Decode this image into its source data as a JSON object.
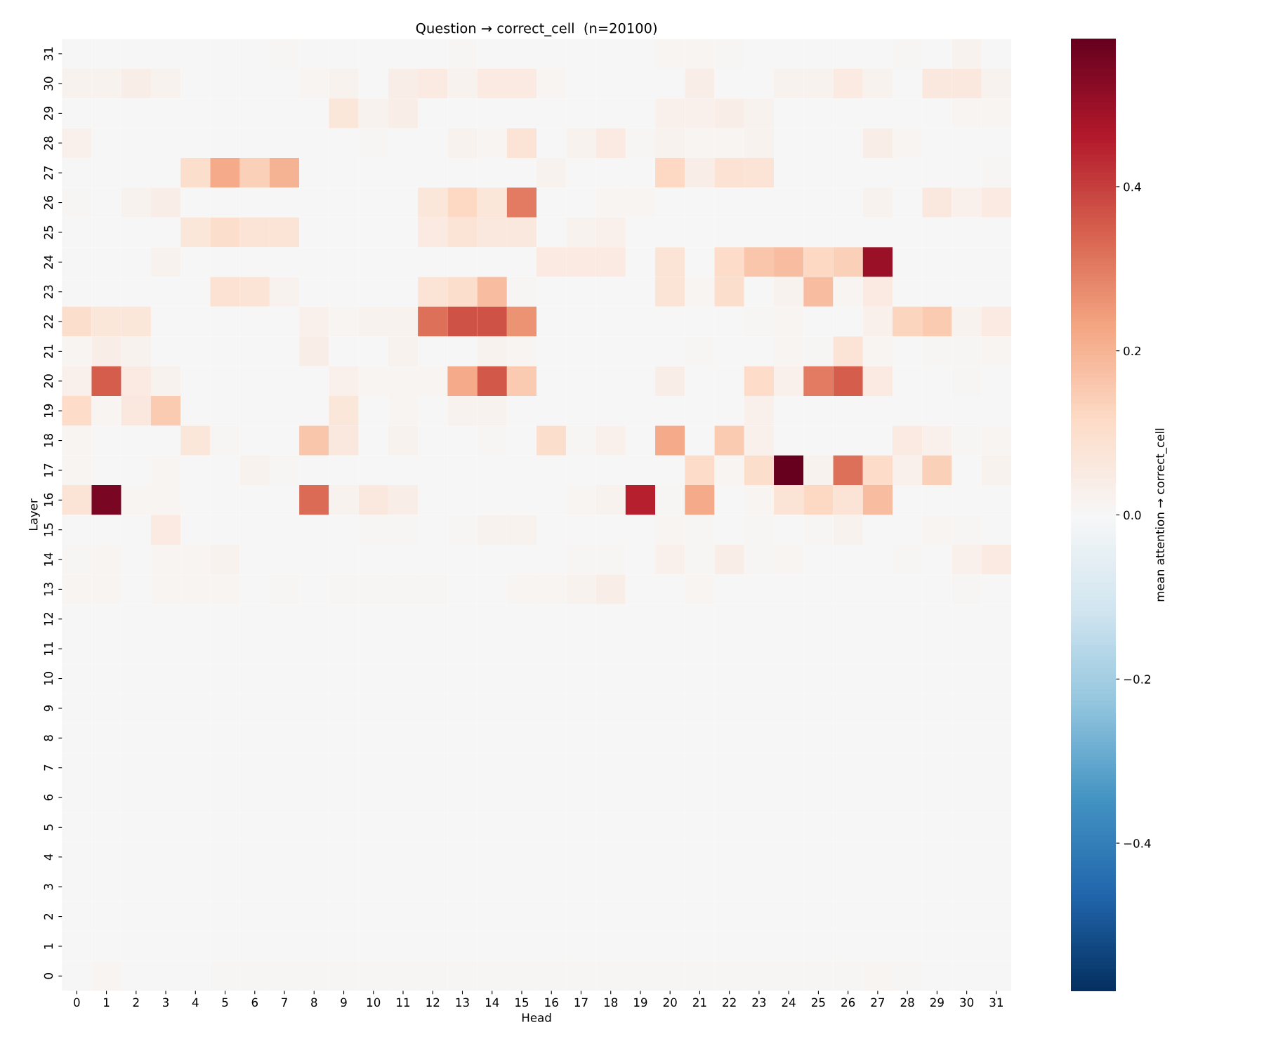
{
  "chart_data": {
    "type": "heatmap",
    "title": "Question → correct_cell  (n=20100)",
    "xlabel": "Head",
    "ylabel": "Layer",
    "clabel": "mean attention → correct_cell",
    "categories": [
      "0",
      "1",
      "2",
      "3",
      "4",
      "5",
      "6",
      "7",
      "8",
      "9",
      "10",
      "11",
      "12",
      "13",
      "14",
      "15",
      "16",
      "17",
      "18",
      "19",
      "20",
      "21",
      "22",
      "23",
      "24",
      "25",
      "26",
      "27",
      "28",
      "29",
      "30",
      "31"
    ],
    "y_categories": [
      "31",
      "30",
      "29",
      "28",
      "27",
      "26",
      "25",
      "24",
      "23",
      "22",
      "21",
      "20",
      "19",
      "18",
      "17",
      "16",
      "15",
      "14",
      "13",
      "12",
      "11",
      "10",
      "9",
      "8",
      "7",
      "6",
      "5",
      "4",
      "3",
      "2",
      "1",
      "0"
    ],
    "clim": [
      -0.58,
      0.58
    ],
    "cticks": [
      {
        "value": -0.4,
        "label": "−0.4"
      },
      {
        "value": -0.2,
        "label": "−0.2"
      },
      {
        "value": 0,
        "label": "0.0"
      },
      {
        "value": 0.2,
        "label": "0.2"
      },
      {
        "value": 0.4,
        "label": "0.4"
      }
    ],
    "cells": [
      [
        0,
        0,
        0,
        0,
        0,
        0,
        0,
        0.005,
        0,
        0,
        0,
        0,
        0,
        0.005,
        0,
        0,
        0,
        0,
        0,
        0,
        0.01,
        0.01,
        0.005,
        0,
        0,
        0,
        0,
        0,
        0.005,
        0,
        0.02,
        0
      ],
      [
        0.02,
        0.02,
        0.04,
        0.02,
        0,
        0,
        0,
        0,
        0.01,
        0.02,
        0,
        0.04,
        0.05,
        0.02,
        0.05,
        0.05,
        0.01,
        0,
        0,
        0,
        0,
        0.04,
        0,
        0,
        0.02,
        0.02,
        0.05,
        0.02,
        0,
        0.06,
        0.06,
        0.02
      ],
      [
        0,
        0,
        0,
        0,
        0,
        0,
        0,
        0,
        0,
        0.07,
        0.02,
        0.04,
        0,
        0,
        0,
        0,
        0,
        0,
        0,
        0,
        0.03,
        0.03,
        0.04,
        0.02,
        0,
        0,
        0,
        0,
        0,
        0,
        0.01,
        0.01
      ],
      [
        0.03,
        0,
        0,
        0,
        0,
        0,
        0,
        0,
        0,
        0,
        0.005,
        0,
        0,
        0.02,
        0.01,
        0.08,
        0,
        0.02,
        0.05,
        0.005,
        0.02,
        0.01,
        0.01,
        0.02,
        0,
        0,
        0,
        0.04,
        0.01,
        0,
        0,
        0
      ],
      [
        0,
        0,
        0,
        0,
        0.1,
        0.22,
        0.14,
        0.2,
        0,
        0,
        0,
        0,
        0,
        0,
        0,
        0,
        0.02,
        0,
        0,
        0,
        0.12,
        0.04,
        0.09,
        0.08,
        0,
        0,
        0,
        0,
        0,
        0,
        0,
        0.005
      ],
      [
        0.005,
        0,
        0.02,
        0.04,
        0,
        0,
        0,
        0,
        0,
        0,
        0,
        0,
        0.07,
        0.12,
        0.07,
        0.3,
        0,
        0,
        0.01,
        0.01,
        0,
        0,
        0,
        0,
        0,
        0,
        0,
        0.02,
        0,
        0.06,
        0.03,
        0.05
      ],
      [
        0,
        0,
        0,
        0,
        0.07,
        0.1,
        0.08,
        0.08,
        0,
        0,
        0,
        0,
        0.05,
        0.08,
        0.06,
        0.06,
        0,
        0.02,
        0.03,
        0,
        0,
        0,
        0,
        0,
        0,
        0,
        0,
        0,
        0,
        0,
        0,
        0
      ],
      [
        0,
        0,
        0,
        0.02,
        0,
        0,
        0,
        0,
        0,
        0,
        0,
        0,
        0,
        0,
        0,
        0,
        0.05,
        0.05,
        0.05,
        0,
        0.08,
        0,
        0.11,
        0.16,
        0.18,
        0.12,
        0.14,
        0.5,
        0,
        0,
        0,
        0
      ],
      [
        0,
        0,
        0,
        0,
        0,
        0.09,
        0.08,
        0.02,
        0,
        0,
        0,
        0,
        0.08,
        0.1,
        0.18,
        0.005,
        0,
        0,
        0,
        0,
        0.08,
        0.01,
        0.1,
        0,
        0.02,
        0.18,
        0.01,
        0.05,
        0,
        0,
        0,
        0
      ],
      [
        0.1,
        0.07,
        0.07,
        0,
        0,
        0,
        0,
        0,
        0.03,
        0.01,
        0.02,
        0.02,
        0.32,
        0.37,
        0.37,
        0.26,
        0,
        0,
        0,
        0,
        0,
        0,
        0,
        0.005,
        0.01,
        0,
        0,
        0.03,
        0.13,
        0.15,
        0.02,
        0.05
      ],
      [
        0.01,
        0.04,
        0.02,
        0,
        0,
        0,
        0,
        0,
        0.04,
        0,
        0,
        0.02,
        0,
        0,
        0.02,
        0.01,
        0,
        0,
        0,
        0,
        0,
        0.005,
        0,
        0,
        0.01,
        0.005,
        0.08,
        0.01,
        0,
        0.005,
        0.005,
        0.01
      ],
      [
        0.03,
        0.35,
        0.05,
        0.02,
        0,
        0,
        0,
        0,
        0,
        0.03,
        0.01,
        0.01,
        0.01,
        0.22,
        0.36,
        0.15,
        0,
        0,
        0,
        0,
        0.04,
        0,
        0,
        0.11,
        0.03,
        0.3,
        0.35,
        0.05,
        0,
        0,
        0.005,
        0
      ],
      [
        0.11,
        0.01,
        0.06,
        0.15,
        0,
        0,
        0,
        0,
        0,
        0.07,
        0,
        0.01,
        0,
        0.02,
        0.02,
        0,
        0,
        0,
        0,
        0,
        0,
        0,
        0,
        0.03,
        0,
        0,
        0,
        0,
        0,
        0,
        0,
        0
      ],
      [
        0.01,
        0,
        0,
        0,
        0.07,
        0.005,
        0,
        0,
        0.16,
        0.06,
        0,
        0.02,
        0,
        0,
        0.005,
        0,
        0.1,
        0.005,
        0.03,
        0,
        0.22,
        0,
        0.15,
        0.03,
        0,
        0,
        0,
        0,
        0.05,
        0.03,
        0.005,
        0.01
      ],
      [
        0.01,
        0,
        0,
        0.01,
        0,
        0,
        0.02,
        0.005,
        0,
        0,
        0,
        0,
        0,
        0,
        0,
        0,
        0,
        0,
        0,
        0,
        0,
        0.11,
        0.01,
        0.1,
        0.58,
        0.02,
        0.32,
        0.11,
        0.03,
        0.14,
        0,
        0.02
      ],
      [
        0.08,
        0.55,
        0.01,
        0.01,
        0,
        0,
        0,
        0,
        0.33,
        0.02,
        0.06,
        0.04,
        0,
        0,
        0,
        0,
        0,
        0.01,
        0.02,
        0.45,
        0.005,
        0.22,
        0,
        0.01,
        0.08,
        0.12,
        0.08,
        0.18,
        0,
        0,
        0,
        0
      ],
      [
        0,
        0,
        0,
        0.05,
        0,
        0,
        0,
        0,
        0,
        0,
        0.005,
        0.005,
        0,
        0.005,
        0.02,
        0.02,
        0,
        0,
        0,
        0,
        0.01,
        0.005,
        0,
        0.005,
        0,
        0.005,
        0.02,
        0,
        0,
        0.01,
        0.005,
        0
      ],
      [
        0.005,
        0.01,
        0,
        0.01,
        0.01,
        0.02,
        0,
        0,
        0,
        0,
        0,
        0,
        0,
        0,
        0,
        0,
        0,
        0.005,
        0.005,
        0,
        0.03,
        0.005,
        0.04,
        0.005,
        0.01,
        0,
        0,
        0,
        0.005,
        0,
        0.03,
        0.05
      ],
      [
        0.01,
        0.01,
        0,
        0.01,
        0.01,
        0.01,
        0,
        0.005,
        0,
        0.005,
        0.005,
        0.005,
        0.005,
        0,
        0,
        0.01,
        0.01,
        0.02,
        0.04,
        0,
        0,
        0.01,
        0,
        0,
        0,
        0,
        0,
        0,
        0,
        0,
        0.005,
        0
      ],
      [
        0,
        0,
        0,
        0,
        0,
        0,
        0,
        0,
        0,
        0,
        0,
        0,
        0,
        0,
        0,
        0,
        0,
        0,
        0,
        0,
        0,
        0,
        0,
        0,
        0,
        0,
        0,
        0,
        0,
        0,
        0,
        0
      ],
      [
        0,
        0,
        0,
        0,
        0,
        0,
        0,
        0,
        0,
        0,
        0,
        0,
        0,
        0,
        0,
        0,
        0,
        0,
        0,
        0,
        0,
        0,
        0,
        0,
        0,
        0,
        0,
        0,
        0,
        0,
        0,
        0
      ],
      [
        0,
        0,
        0,
        0,
        0,
        0,
        0,
        0,
        0,
        0,
        0,
        0,
        0,
        0,
        0,
        0,
        0,
        0,
        0,
        0,
        0,
        0,
        0,
        0,
        0,
        0,
        0,
        0,
        0,
        0,
        0,
        0
      ],
      [
        0,
        0,
        0,
        0,
        0,
        0,
        0,
        0,
        0,
        0,
        0,
        0,
        0,
        0,
        0,
        0,
        0,
        0,
        0,
        0,
        0,
        0,
        0,
        0,
        0,
        0,
        0,
        0,
        0,
        0,
        0,
        0
      ],
      [
        0,
        0,
        0,
        0,
        0,
        0,
        0,
        0,
        0,
        0,
        0,
        0,
        0,
        0,
        0,
        0,
        0,
        0,
        0,
        0,
        0,
        0,
        0,
        0,
        0,
        0,
        0,
        0,
        0,
        0,
        0,
        0
      ],
      [
        0,
        0,
        0,
        0,
        0,
        0,
        0,
        0,
        0,
        0,
        0,
        0,
        0,
        0,
        0,
        0,
        0,
        0,
        0,
        0,
        0,
        0,
        0,
        0,
        0,
        0,
        0,
        0,
        0,
        0,
        0,
        0
      ],
      [
        0,
        0,
        0,
        0,
        0,
        0,
        0,
        0,
        0,
        0,
        0,
        0,
        0,
        0,
        0,
        0,
        0,
        0,
        0,
        0,
        0,
        0,
        0,
        0,
        0,
        0,
        0,
        0,
        0,
        0,
        0,
        0
      ],
      [
        0,
        0,
        0,
        0,
        0,
        0,
        0,
        0,
        0,
        0,
        0,
        0,
        0,
        0,
        0,
        0,
        0,
        0,
        0,
        0,
        0,
        0,
        0,
        0,
        0,
        0,
        0,
        0,
        0,
        0,
        0,
        0
      ],
      [
        0,
        0,
        0,
        0,
        0,
        0,
        0,
        0,
        0,
        0,
        0,
        0,
        0,
        0,
        0,
        0,
        0,
        0,
        0,
        0,
        0,
        0,
        0,
        0,
        0,
        0,
        0,
        0,
        0,
        0,
        0,
        0
      ],
      [
        0,
        0,
        0,
        0,
        0,
        0,
        0,
        0,
        0,
        0,
        0,
        0,
        0,
        0,
        0,
        0,
        0,
        0,
        0,
        0,
        0,
        0,
        0,
        0,
        0,
        0,
        0,
        0,
        0,
        0,
        0,
        0
      ],
      [
        0,
        0,
        0,
        0,
        0,
        0,
        0,
        0,
        0,
        0,
        0,
        0,
        0,
        0,
        0,
        0,
        0,
        0,
        0,
        0,
        0,
        0,
        0,
        0,
        0,
        0,
        0,
        0,
        0,
        0,
        0,
        0
      ],
      [
        0,
        0,
        0,
        0,
        0,
        0,
        0,
        0,
        0,
        0,
        0,
        0,
        0,
        0,
        0,
        0,
        0,
        0,
        0,
        0,
        0,
        0,
        0,
        0,
        0,
        0,
        0,
        0,
        0,
        0,
        0,
        0
      ],
      [
        0,
        0.01,
        0,
        0,
        0,
        0.005,
        0.005,
        0.005,
        0.005,
        0.005,
        0.005,
        0.005,
        0.005,
        0.005,
        0.005,
        0.005,
        0.005,
        0.005,
        0.005,
        0.005,
        0.005,
        0.005,
        0.005,
        0.005,
        0.005,
        0.005,
        0.005,
        0.01,
        0.005,
        0,
        0,
        0
      ]
    ]
  }
}
